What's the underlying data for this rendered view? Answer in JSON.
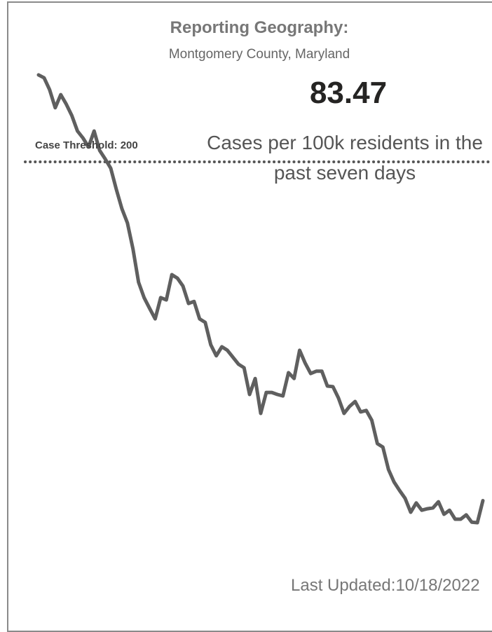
{
  "header": {
    "title": "Reporting Geography:",
    "subtitle": "Montgomery County, Maryland"
  },
  "kpi": {
    "value": 83.47,
    "description": "Cases per 100k residents in the past seven days"
  },
  "footer": {
    "label": "Last Updated:",
    "date": "10/18/2022"
  },
  "chart_data": {
    "type": "line",
    "color": "#5f5f5f",
    "ylim": [
      72,
      232
    ],
    "threshold": {
      "value": 200,
      "label": "Case Threshold: 200"
    },
    "values": [
      229.9,
      228.9,
      224.8,
      218.6,
      223.1,
      219.8,
      215.9,
      210.6,
      208.2,
      205.1,
      210.6,
      203.9,
      201.0,
      197.8,
      190.6,
      183.9,
      179.0,
      170.1,
      158.6,
      153.3,
      149.6,
      146.0,
      153.3,
      152.5,
      161.2,
      160.0,
      157.3,
      151.3,
      152.0,
      146.0,
      144.8,
      137.1,
      133.3,
      136.4,
      135.2,
      132.8,
      130.4,
      129.2,
      120.0,
      125.5,
      113.5,
      120.7,
      120.7,
      120.0,
      119.5,
      127.5,
      125.5,
      135.2,
      130.8,
      127.2,
      128.0,
      128.0,
      122.9,
      122.7,
      118.8,
      113.5,
      115.9,
      117.6,
      114.0,
      114.5,
      111.1,
      103.1,
      101.9,
      94.2,
      89.9,
      87.0,
      84.3,
      79.5,
      82.7,
      80.2,
      80.7,
      81.0,
      83.1,
      78.8,
      80.2,
      77.1,
      77.1,
      78.6,
      76.1,
      75.9,
      83.5
    ]
  }
}
